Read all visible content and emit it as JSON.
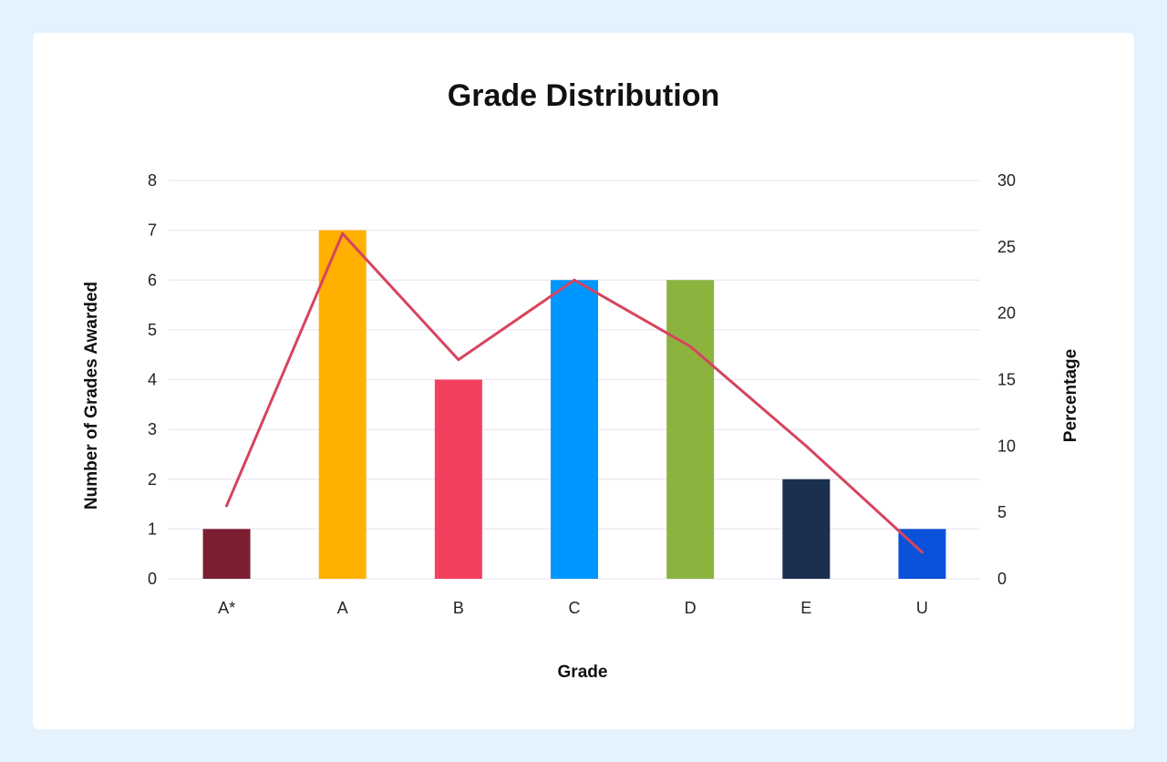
{
  "chart_data": {
    "type": "bar",
    "title": "Grade Distribution",
    "xlabel": "Grade",
    "ylabel": "Number of Grades Awarded",
    "y2label": "Percentage",
    "categories": [
      "A*",
      "A",
      "B",
      "C",
      "D",
      "E",
      "U"
    ],
    "series": [
      {
        "type": "bar",
        "axis": "left",
        "values": [
          1,
          7,
          4,
          6,
          6,
          2,
          1
        ],
        "colors": [
          "#7b1e31",
          "#ffb000",
          "#f43f5e",
          "#0096ff",
          "#8db33f",
          "#1b3050",
          "#0a52d9"
        ]
      },
      {
        "type": "line",
        "axis": "right",
        "values": [
          5.5,
          26,
          16.5,
          22.5,
          17.5,
          10,
          2
        ],
        "color": "#d6445f"
      }
    ],
    "ylim": [
      0,
      8
    ],
    "yticks": [
      "0",
      "1",
      "2",
      "3",
      "4",
      "5",
      "6",
      "7",
      "8"
    ],
    "y2lim": [
      0,
      30
    ],
    "y2ticks": [
      "0",
      "5",
      "10",
      "15",
      "20",
      "25",
      "30"
    ],
    "grid": true,
    "gridColor": "#ebe6f3",
    "legend": "none"
  }
}
